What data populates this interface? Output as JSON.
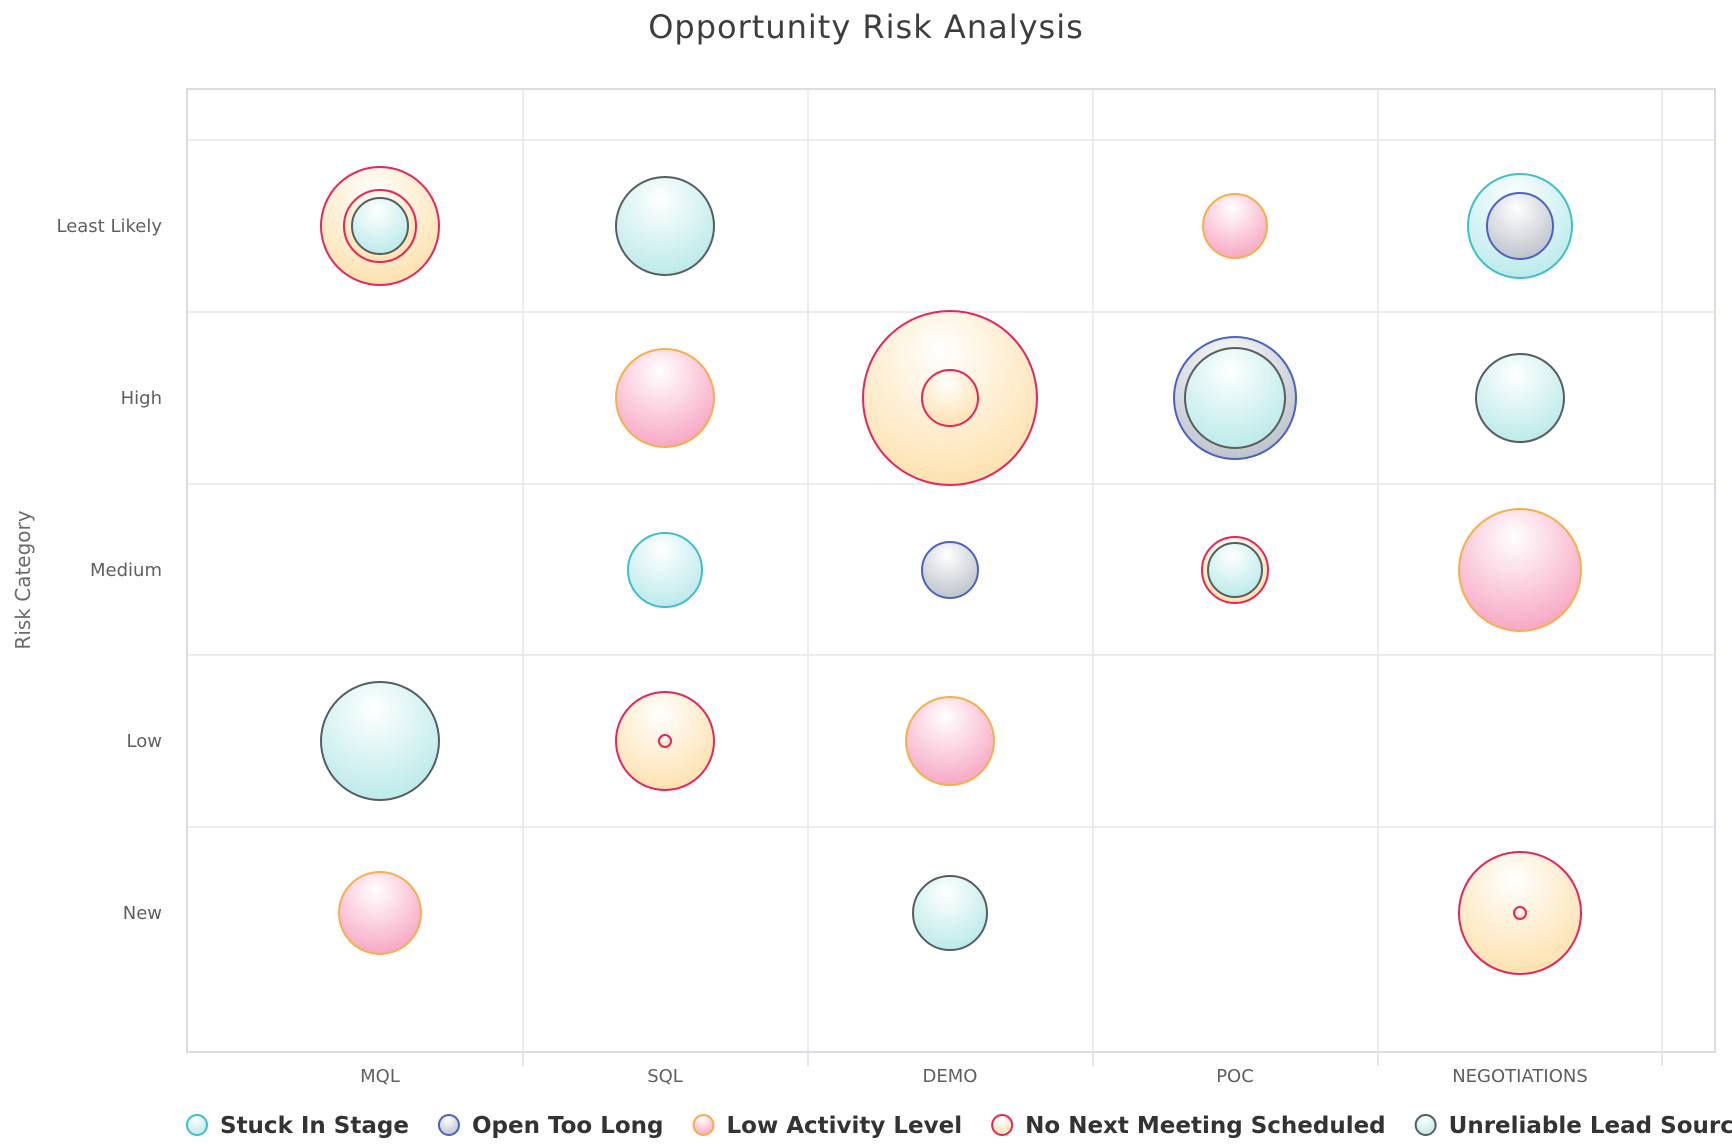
{
  "chart_data": {
    "type": "bubble",
    "title": "Opportunity Risk Analysis",
    "xlabel": "",
    "ylabel": "Risk Category",
    "categories": [
      "MQL",
      "SQL",
      "DEMO",
      "POC",
      "NEGOTIATIONS"
    ],
    "y_categories": [
      "Least Likely",
      "High",
      "Medium",
      "Low",
      "New"
    ],
    "grid": true,
    "legend_position": "bottom",
    "series": [
      {
        "name": "Stuck In Stage",
        "fill": "#bdeaec",
        "stroke": "#3fbfc7",
        "points": [
          {
            "x": "SQL",
            "y": "Medium",
            "size": 37
          },
          {
            "x": "NEGOTIATIONS",
            "y": "Least Likely",
            "size": 52
          }
        ]
      },
      {
        "name": "Open Too Long",
        "fill": "#bfc4cc",
        "stroke": "#4a63c0",
        "points": [
          {
            "x": "NEGOTIATIONS",
            "y": "Least Likely",
            "size": 33
          },
          {
            "x": "POC",
            "y": "High",
            "size": 61
          },
          {
            "x": "DEMO",
            "y": "Medium",
            "size": 28
          }
        ]
      },
      {
        "name": "Low Activity Level",
        "fill": "#f7a8c4",
        "stroke": "#f5b04a",
        "points": [
          {
            "x": "POC",
            "y": "Least Likely",
            "size": 32
          },
          {
            "x": "SQL",
            "y": "High",
            "size": 49
          },
          {
            "x": "NEGOTIATIONS",
            "y": "Medium",
            "size": 61
          },
          {
            "x": "DEMO",
            "y": "Low",
            "size": 44
          },
          {
            "x": "MQL",
            "y": "New",
            "size": 41
          }
        ]
      },
      {
        "name": "No Next Meeting Scheduled",
        "fill": "#fde2b0",
        "stroke": "#e8245c",
        "points": [
          {
            "x": "MQL",
            "y": "Least Likely",
            "size": 59
          },
          {
            "x": "MQL",
            "y": "Least Likely",
            "size": 36
          },
          {
            "x": "DEMO",
            "y": "High",
            "size": 87
          },
          {
            "x": "DEMO",
            "y": "High",
            "size": 28
          },
          {
            "x": "POC",
            "y": "Medium",
            "size": 33
          },
          {
            "x": "SQL",
            "y": "Low",
            "size": 49
          },
          {
            "x": "SQL",
            "y": "Low",
            "size": 6
          },
          {
            "x": "NEGOTIATIONS",
            "y": "New",
            "size": 61
          },
          {
            "x": "NEGOTIATIONS",
            "y": "New",
            "size": 6
          }
        ]
      },
      {
        "name": "Unreliable Lead Source",
        "fill": "#bdeaea",
        "stroke": "#555f5f",
        "points": [
          {
            "x": "SQL",
            "y": "Least Likely",
            "size": 49
          },
          {
            "x": "NEGOTIATIONS",
            "y": "High",
            "size": 44
          },
          {
            "x": "MQL",
            "y": "Low",
            "size": 59
          },
          {
            "x": "DEMO",
            "y": "New",
            "size": 37
          },
          {
            "x": "POC",
            "y": "High",
            "size": 50
          },
          {
            "x": "POC",
            "y": "Medium",
            "size": 27
          },
          {
            "x": "MQL",
            "y": "Least Likely",
            "size": 28
          }
        ]
      }
    ]
  }
}
